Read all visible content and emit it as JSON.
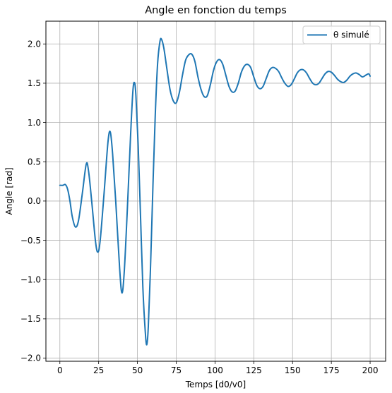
{
  "chart_data": {
    "type": "line",
    "title": "Angle en fonction du temps",
    "xlabel": "Temps [d0/v0]",
    "ylabel": "Angle [rad]",
    "xlim": [
      -9,
      210
    ],
    "ylim": [
      -2.04,
      2.29
    ],
    "xticks": [
      0,
      25,
      50,
      75,
      100,
      125,
      150,
      175,
      200
    ],
    "xtick_labels": [
      "0",
      "25",
      "50",
      "75",
      "100",
      "125",
      "150",
      "175",
      "200"
    ],
    "yticks": [
      2.0,
      1.5,
      1.0,
      0.5,
      0.0,
      -0.5,
      -1.0,
      -1.5,
      -2.0
    ],
    "ytick_labels": [
      "2.0",
      "1.5",
      "1.0",
      "0.5",
      "0.0",
      "−0.5",
      "−1.0",
      "−1.5",
      "−2.0"
    ],
    "grid": true,
    "legend_position": "top-right",
    "series": [
      {
        "name": "θ simulé",
        "color": "#1f77b4",
        "points": [
          [
            0,
            0.2
          ],
          [
            2,
            0.2
          ],
          [
            3.5,
            0.21
          ],
          [
            5,
            0.15
          ],
          [
            6.5,
            0.0
          ],
          [
            8,
            -0.2
          ],
          [
            10,
            -0.33
          ],
          [
            12,
            -0.25
          ],
          [
            14.5,
            0.1
          ],
          [
            17,
            0.47
          ],
          [
            18.5,
            0.38
          ],
          [
            20.5,
            0.0
          ],
          [
            23,
            -0.52
          ],
          [
            24.5,
            -0.65
          ],
          [
            26,
            -0.5
          ],
          [
            28.5,
            0.1
          ],
          [
            31,
            0.75
          ],
          [
            32.5,
            0.88
          ],
          [
            34,
            0.6
          ],
          [
            36,
            0.0
          ],
          [
            38.5,
            -0.85
          ],
          [
            40,
            -1.17
          ],
          [
            41.5,
            -0.9
          ],
          [
            43.5,
            -0.1
          ],
          [
            45.5,
            0.8
          ],
          [
            47,
            1.38
          ],
          [
            48,
            1.51
          ],
          [
            49,
            1.35
          ],
          [
            50.5,
            0.7
          ],
          [
            52,
            -0.2
          ],
          [
            53.5,
            -1.1
          ],
          [
            55,
            -1.65
          ],
          [
            56,
            -1.83
          ],
          [
            57,
            -1.6
          ],
          [
            58.5,
            -0.8
          ],
          [
            60,
            0.2
          ],
          [
            61.5,
            1.1
          ],
          [
            63,
            1.75
          ],
          [
            64.5,
            2.03
          ],
          [
            65.5,
            2.06
          ],
          [
            67,
            1.95
          ],
          [
            69,
            1.68
          ],
          [
            71,
            1.42
          ],
          [
            73,
            1.28
          ],
          [
            75,
            1.25
          ],
          [
            77,
            1.38
          ],
          [
            79,
            1.6
          ],
          [
            81,
            1.79
          ],
          [
            83,
            1.86
          ],
          [
            85,
            1.87
          ],
          [
            87,
            1.78
          ],
          [
            89,
            1.58
          ],
          [
            91,
            1.42
          ],
          [
            93,
            1.33
          ],
          [
            95,
            1.34
          ],
          [
            97,
            1.48
          ],
          [
            99,
            1.66
          ],
          [
            101,
            1.77
          ],
          [
            103,
            1.8
          ],
          [
            105,
            1.74
          ],
          [
            107,
            1.6
          ],
          [
            109,
            1.46
          ],
          [
            111,
            1.39
          ],
          [
            113,
            1.4
          ],
          [
            115,
            1.5
          ],
          [
            117,
            1.64
          ],
          [
            119,
            1.72
          ],
          [
            121,
            1.74
          ],
          [
            123,
            1.7
          ],
          [
            125,
            1.58
          ],
          [
            127,
            1.47
          ],
          [
            129,
            1.43
          ],
          [
            131,
            1.46
          ],
          [
            133,
            1.56
          ],
          [
            135,
            1.66
          ],
          [
            137,
            1.7
          ],
          [
            139,
            1.69
          ],
          [
            141,
            1.65
          ],
          [
            143,
            1.57
          ],
          [
            145,
            1.5
          ],
          [
            147,
            1.46
          ],
          [
            149,
            1.48
          ],
          [
            151,
            1.55
          ],
          [
            153,
            1.63
          ],
          [
            155,
            1.67
          ],
          [
            157,
            1.67
          ],
          [
            159,
            1.63
          ],
          [
            161,
            1.56
          ],
          [
            163,
            1.5
          ],
          [
            165,
            1.48
          ],
          [
            167,
            1.5
          ],
          [
            169,
            1.56
          ],
          [
            171,
            1.62
          ],
          [
            173,
            1.65
          ],
          [
            175,
            1.64
          ],
          [
            177,
            1.6
          ],
          [
            179,
            1.55
          ],
          [
            181,
            1.52
          ],
          [
            183,
            1.51
          ],
          [
            185,
            1.54
          ],
          [
            187,
            1.59
          ],
          [
            189,
            1.62
          ],
          [
            191,
            1.63
          ],
          [
            193,
            1.61
          ],
          [
            195,
            1.58
          ],
          [
            197,
            1.6
          ],
          [
            199,
            1.62
          ],
          [
            200,
            1.59
          ]
        ]
      }
    ]
  }
}
